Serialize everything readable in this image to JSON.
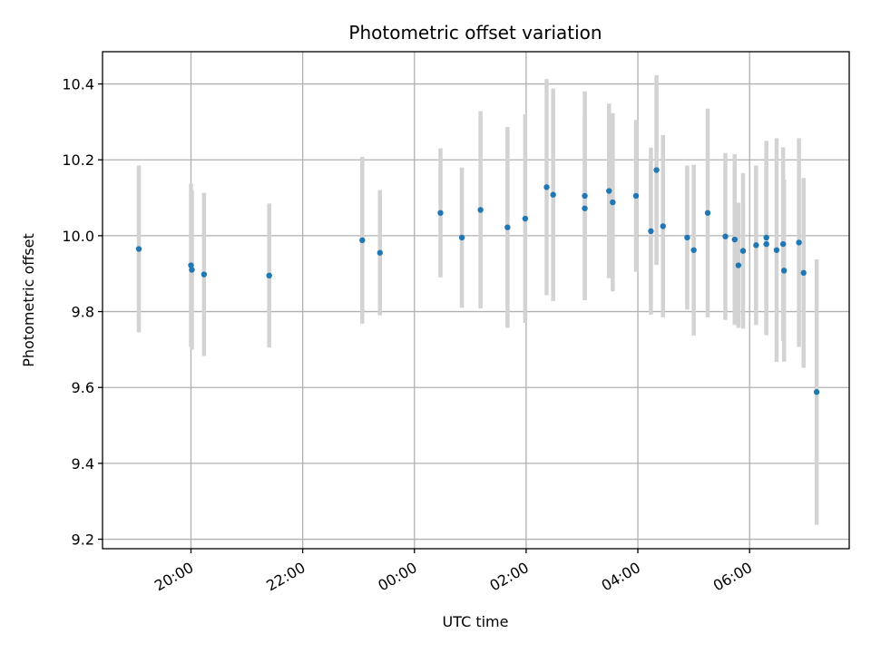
{
  "chart_data": {
    "type": "scatter",
    "title": "Photometric offset variation",
    "xlabel": "UTC time",
    "ylabel": "Photometric offset",
    "x_ticks": [
      "20:00",
      "22:00",
      "00:00",
      "02:00",
      "04:00",
      "06:00"
    ],
    "y_ticks": [
      "9.2",
      "9.4",
      "9.6",
      "9.8",
      "10.0",
      "10.2",
      "10.4"
    ],
    "xlim": [
      "18:25",
      "07:47"
    ],
    "ylim": [
      9.175,
      10.485
    ],
    "grid": true,
    "colors": {
      "points": "#1f77b4",
      "error_bars": "#d3d3d3",
      "grid": "#b0b0b0"
    },
    "points": [
      {
        "x": "19:04",
        "y": 9.965,
        "err": 0.22
      },
      {
        "x": "20:00",
        "y": 9.922,
        "err": 0.215
      },
      {
        "x": "20:01",
        "y": 9.91,
        "err": 0.21
      },
      {
        "x": "20:14",
        "y": 9.898,
        "err": 0.215
      },
      {
        "x": "21:24",
        "y": 9.895,
        "err": 0.19
      },
      {
        "x": "23:04",
        "y": 9.988,
        "err": 0.22
      },
      {
        "x": "23:23",
        "y": 9.955,
        "err": 0.165
      },
      {
        "x": "00:28",
        "y": 10.06,
        "err": 0.17
      },
      {
        "x": "00:51",
        "y": 9.995,
        "err": 0.185
      },
      {
        "x": "01:11",
        "y": 10.068,
        "err": 0.26
      },
      {
        "x": "01:40",
        "y": 10.022,
        "err": 0.265
      },
      {
        "x": "01:59",
        "y": 10.045,
        "err": 0.275
      },
      {
        "x": "02:22",
        "y": 10.128,
        "err": 0.285
      },
      {
        "x": "02:29",
        "y": 10.108,
        "err": 0.28
      },
      {
        "x": "03:03",
        "y": 10.105,
        "err": 0.275
      },
      {
        "x": "03:03",
        "y": 10.072,
        "err": 0.24
      },
      {
        "x": "03:29",
        "y": 10.118,
        "err": 0.23
      },
      {
        "x": "03:33",
        "y": 10.088,
        "err": 0.235
      },
      {
        "x": "03:58",
        "y": 10.105,
        "err": 0.2
      },
      {
        "x": "04:14",
        "y": 10.012,
        "err": 0.22
      },
      {
        "x": "04:20",
        "y": 10.173,
        "err": 0.25
      },
      {
        "x": "04:27",
        "y": 10.025,
        "err": 0.24
      },
      {
        "x": "04:53",
        "y": 9.995,
        "err": 0.19
      },
      {
        "x": "05:00",
        "y": 9.962,
        "err": 0.225
      },
      {
        "x": "05:15",
        "y": 10.06,
        "err": 0.275
      },
      {
        "x": "05:34",
        "y": 9.998,
        "err": 0.22
      },
      {
        "x": "05:44",
        "y": 9.99,
        "err": 0.225
      },
      {
        "x": "05:48",
        "y": 9.922,
        "err": 0.165
      },
      {
        "x": "05:53",
        "y": 9.96,
        "err": 0.205
      },
      {
        "x": "06:07",
        "y": 9.975,
        "err": 0.21
      },
      {
        "x": "06:18",
        "y": 9.995,
        "err": 0.255
      },
      {
        "x": "06:18",
        "y": 9.978,
        "err": 0.24
      },
      {
        "x": "06:29",
        "y": 9.962,
        "err": 0.295
      },
      {
        "x": "06:36",
        "y": 9.978,
        "err": 0.255
      },
      {
        "x": "06:37",
        "y": 9.908,
        "err": 0.24
      },
      {
        "x": "06:53",
        "y": 9.982,
        "err": 0.275
      },
      {
        "x": "06:58",
        "y": 9.902,
        "err": 0.25
      },
      {
        "x": "07:12",
        "y": 9.588,
        "err": 0.35
      }
    ]
  }
}
